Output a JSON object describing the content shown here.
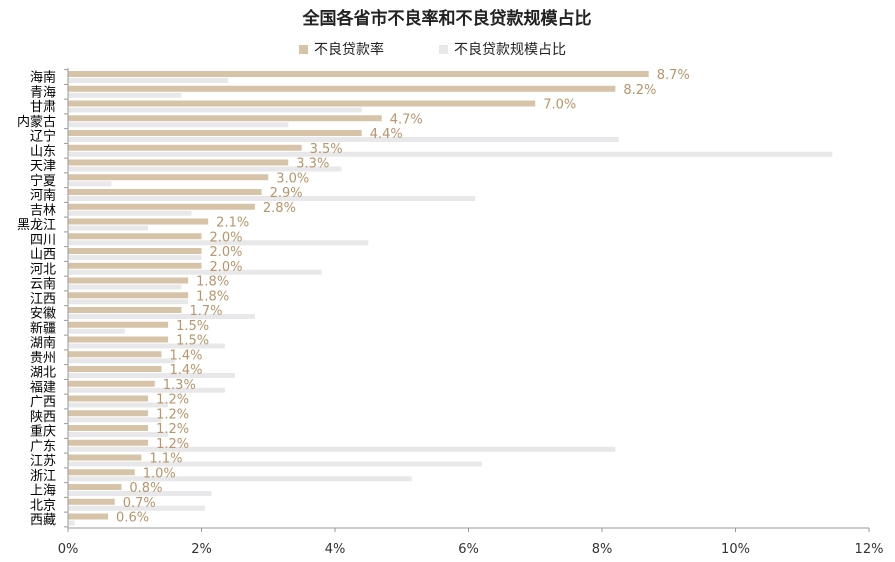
{
  "chart_data": {
    "type": "bar",
    "orientation": "horizontal",
    "title": "全国各省市不良率和不良贷款规模占比",
    "legend": {
      "placement": "top-center",
      "entries": [
        "不良贷款率",
        "不良贷款规模占比"
      ]
    },
    "categories": [
      "海南",
      "青海",
      "甘肃",
      "内蒙古",
      "辽宁",
      "山东",
      "天津",
      "宁夏",
      "河南",
      "吉林",
      "黑龙江",
      "四川",
      "山西",
      "河北",
      "云南",
      "江西",
      "安徽",
      "新疆",
      "湖南",
      "贵州",
      "湖北",
      "福建",
      "广西",
      "陕西",
      "重庆",
      "广东",
      "江苏",
      "浙江",
      "上海",
      "北京",
      "西藏"
    ],
    "series": [
      {
        "name": "不良贷款率",
        "color": "#D7C4A8",
        "label_color": "#B8956A",
        "values": [
          8.7,
          8.2,
          7.0,
          4.7,
          4.4,
          3.5,
          3.3,
          3.0,
          2.9,
          2.8,
          2.1,
          2.0,
          2.0,
          2.0,
          1.8,
          1.8,
          1.7,
          1.5,
          1.5,
          1.4,
          1.4,
          1.3,
          1.2,
          1.2,
          1.2,
          1.2,
          1.1,
          1.0,
          0.8,
          0.7,
          0.6
        ],
        "labels": [
          "8.7%",
          "8.2%",
          "7.0%",
          "4.7%",
          "4.4%",
          "3.5%",
          "3.3%",
          "3.0%",
          "2.9%",
          "2.8%",
          "2.1%",
          "2.0%",
          "2.0%",
          "2.0%",
          "1.8%",
          "1.8%",
          "1.7%",
          "1.5%",
          "1.5%",
          "1.4%",
          "1.4%",
          "1.3%",
          "1.2%",
          "1.2%",
          "1.2%",
          "1.2%",
          "1.1%",
          "1.0%",
          "0.8%",
          "0.7%",
          "0.6%"
        ]
      },
      {
        "name": "不良贷款规模占比",
        "color": "#E8E8EA",
        "values": [
          2.4,
          1.7,
          4.4,
          3.3,
          8.25,
          11.45,
          4.1,
          0.65,
          6.1,
          1.85,
          1.2,
          4.5,
          2.0,
          3.8,
          1.7,
          1.8,
          2.8,
          0.85,
          2.35,
          1.6,
          2.5,
          2.35,
          1.5,
          1.4,
          1.5,
          8.2,
          6.2,
          5.15,
          2.15,
          2.05,
          0.1
        ]
      }
    ],
    "xlim": [
      0,
      12
    ],
    "xticks": [
      0,
      2,
      4,
      6,
      8,
      10,
      12
    ],
    "xtick_labels": [
      "0%",
      "2%",
      "4%",
      "6%",
      "8%",
      "10%",
      "12%"
    ],
    "grid": false,
    "colors": {
      "axis": "#999999",
      "category_text": "#000000",
      "tick_text": "#333333"
    }
  }
}
